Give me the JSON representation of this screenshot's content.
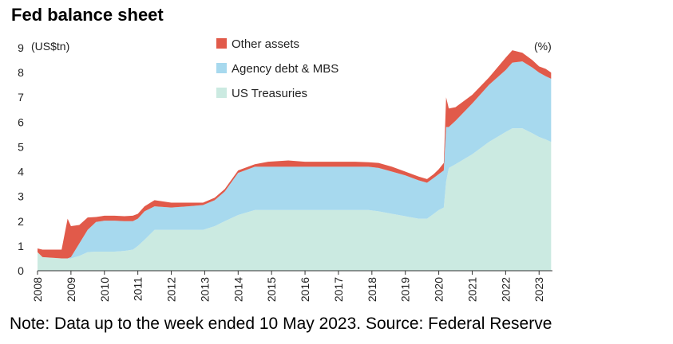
{
  "title": "Fed balance sheet",
  "note": "Note: Data up to the week ended 10 May 2023. Source: Federal Reserve",
  "chart_data": {
    "type": "area",
    "stacked": true,
    "y_unit_label": "(US$tn)",
    "y_unit_label_right": "(%)",
    "ylim": [
      0,
      9
    ],
    "yticks": [
      "0",
      "1",
      "2",
      "3",
      "4",
      "5",
      "6",
      "7",
      "8",
      "9"
    ],
    "xlim": [
      2008.0,
      2023.4
    ],
    "xticks": [
      "2008",
      "2009",
      "2010",
      "2011",
      "2012",
      "2013",
      "2014",
      "2015",
      "2016",
      "2017",
      "2018",
      "2019",
      "2020",
      "2021",
      "2022",
      "2023"
    ],
    "legend_position": "top-center",
    "x": [
      2008.0,
      2008.15,
      2008.72,
      2008.9,
      2009.0,
      2009.25,
      2009.5,
      2009.75,
      2010.0,
      2010.3,
      2010.6,
      2010.85,
      2011.0,
      2011.2,
      2011.5,
      2012.0,
      2012.5,
      2012.95,
      2013.3,
      2013.6,
      2014.0,
      2014.5,
      2014.9,
      2015.5,
      2016.0,
      2017.0,
      2017.5,
      2017.9,
      2018.2,
      2018.6,
      2019.0,
      2019.4,
      2019.65,
      2019.85,
      2020.0,
      2020.15,
      2020.22,
      2020.3,
      2020.5,
      2021.0,
      2021.5,
      2022.0,
      2022.2,
      2022.5,
      2022.8,
      2023.0,
      2023.2,
      2023.36
    ],
    "series": [
      {
        "name": "US Treasuries",
        "color": "#cbeae1",
        "values": [
          0.75,
          0.55,
          0.5,
          0.5,
          0.5,
          0.6,
          0.75,
          0.77,
          0.77,
          0.77,
          0.8,
          0.85,
          1.0,
          1.25,
          1.65,
          1.65,
          1.65,
          1.65,
          1.8,
          2.0,
          2.25,
          2.45,
          2.45,
          2.45,
          2.45,
          2.45,
          2.45,
          2.45,
          2.4,
          2.3,
          2.2,
          2.1,
          2.1,
          2.3,
          2.45,
          2.55,
          3.6,
          4.15,
          4.3,
          4.7,
          5.2,
          5.6,
          5.75,
          5.75,
          5.55,
          5.4,
          5.3,
          5.2
        ]
      },
      {
        "name": "Agency debt & MBS",
        "color": "#a7d9ee",
        "values": [
          0.0,
          0.0,
          0.0,
          0.0,
          0.05,
          0.5,
          0.9,
          1.2,
          1.25,
          1.25,
          1.2,
          1.15,
          1.1,
          1.15,
          0.95,
          0.9,
          0.95,
          1.0,
          1.05,
          1.2,
          1.7,
          1.75,
          1.75,
          1.75,
          1.75,
          1.75,
          1.75,
          1.75,
          1.75,
          1.7,
          1.65,
          1.55,
          1.45,
          1.45,
          1.45,
          1.5,
          2.2,
          1.65,
          1.75,
          2.05,
          2.3,
          2.5,
          2.65,
          2.7,
          2.65,
          2.6,
          2.55,
          2.55
        ]
      },
      {
        "name": "Other assets",
        "color": "#e15a4a",
        "values": [
          0.15,
          0.3,
          0.35,
          1.6,
          1.25,
          0.75,
          0.5,
          0.2,
          0.2,
          0.2,
          0.2,
          0.22,
          0.2,
          0.2,
          0.25,
          0.2,
          0.15,
          0.1,
          0.1,
          0.1,
          0.1,
          0.1,
          0.2,
          0.25,
          0.2,
          0.2,
          0.2,
          0.18,
          0.2,
          0.2,
          0.15,
          0.15,
          0.15,
          0.15,
          0.2,
          0.3,
          1.2,
          0.75,
          0.55,
          0.35,
          0.3,
          0.5,
          0.5,
          0.35,
          0.3,
          0.25,
          0.3,
          0.25
        ]
      }
    ]
  }
}
